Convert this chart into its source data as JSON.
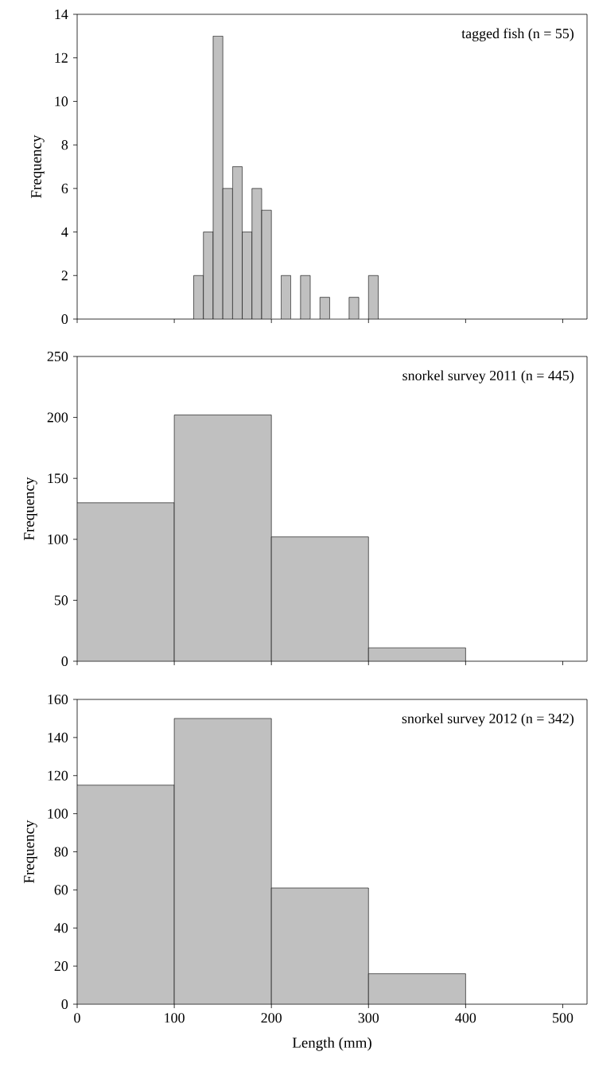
{
  "chart_data": [
    {
      "type": "histogram",
      "bins": [
        120,
        130,
        140,
        150,
        160,
        170,
        180,
        190,
        200,
        210,
        220,
        230,
        240,
        250,
        260,
        270,
        280,
        290,
        300,
        310
      ],
      "values": [
        2,
        4,
        13,
        6,
        7,
        4,
        6,
        5,
        0,
        2,
        0,
        2,
        0,
        1,
        0,
        0,
        1,
        0,
        2
      ],
      "color": "#c0c0c0",
      "xlim": [
        0,
        525
      ],
      "xticks": [
        0,
        100,
        200,
        300,
        400,
        500
      ],
      "ylim": [
        0,
        14
      ],
      "yticks": [
        0,
        2,
        4,
        6,
        8,
        10,
        12,
        14
      ],
      "ylabel": "Frequency",
      "annotations": [
        "tagged fish (n = 55)"
      ],
      "tick_labels": "y"
    },
    {
      "type": "histogram",
      "bins": [
        0,
        100,
        200,
        300,
        400
      ],
      "values": [
        130,
        202,
        102,
        11
      ],
      "color": "#c0c0c0",
      "xlim": [
        0,
        525
      ],
      "xticks": [
        0,
        100,
        200,
        300,
        400,
        500
      ],
      "ylim": [
        0,
        250
      ],
      "yticks": [
        0,
        50,
        100,
        150,
        200,
        250
      ],
      "ylabel": "Frequency",
      "annotations": [
        "snorkel survey 2011 (n = 445)"
      ],
      "tick_labels": "y"
    },
    {
      "type": "histogram",
      "bins": [
        0,
        100,
        200,
        300,
        400
      ],
      "values": [
        115,
        150,
        61,
        16
      ],
      "color": "#c0c0c0",
      "xlim": [
        0,
        525
      ],
      "xticks": [
        0,
        100,
        200,
        300,
        400,
        500
      ],
      "ylim": [
        0,
        160
      ],
      "yticks": [
        0,
        20,
        40,
        60,
        80,
        100,
        120,
        140,
        160
      ],
      "ylabel": "Frequency",
      "xlabel": "Length (mm)",
      "annotations": [
        "snorkel survey 2012 (n = 342)"
      ]
    }
  ]
}
